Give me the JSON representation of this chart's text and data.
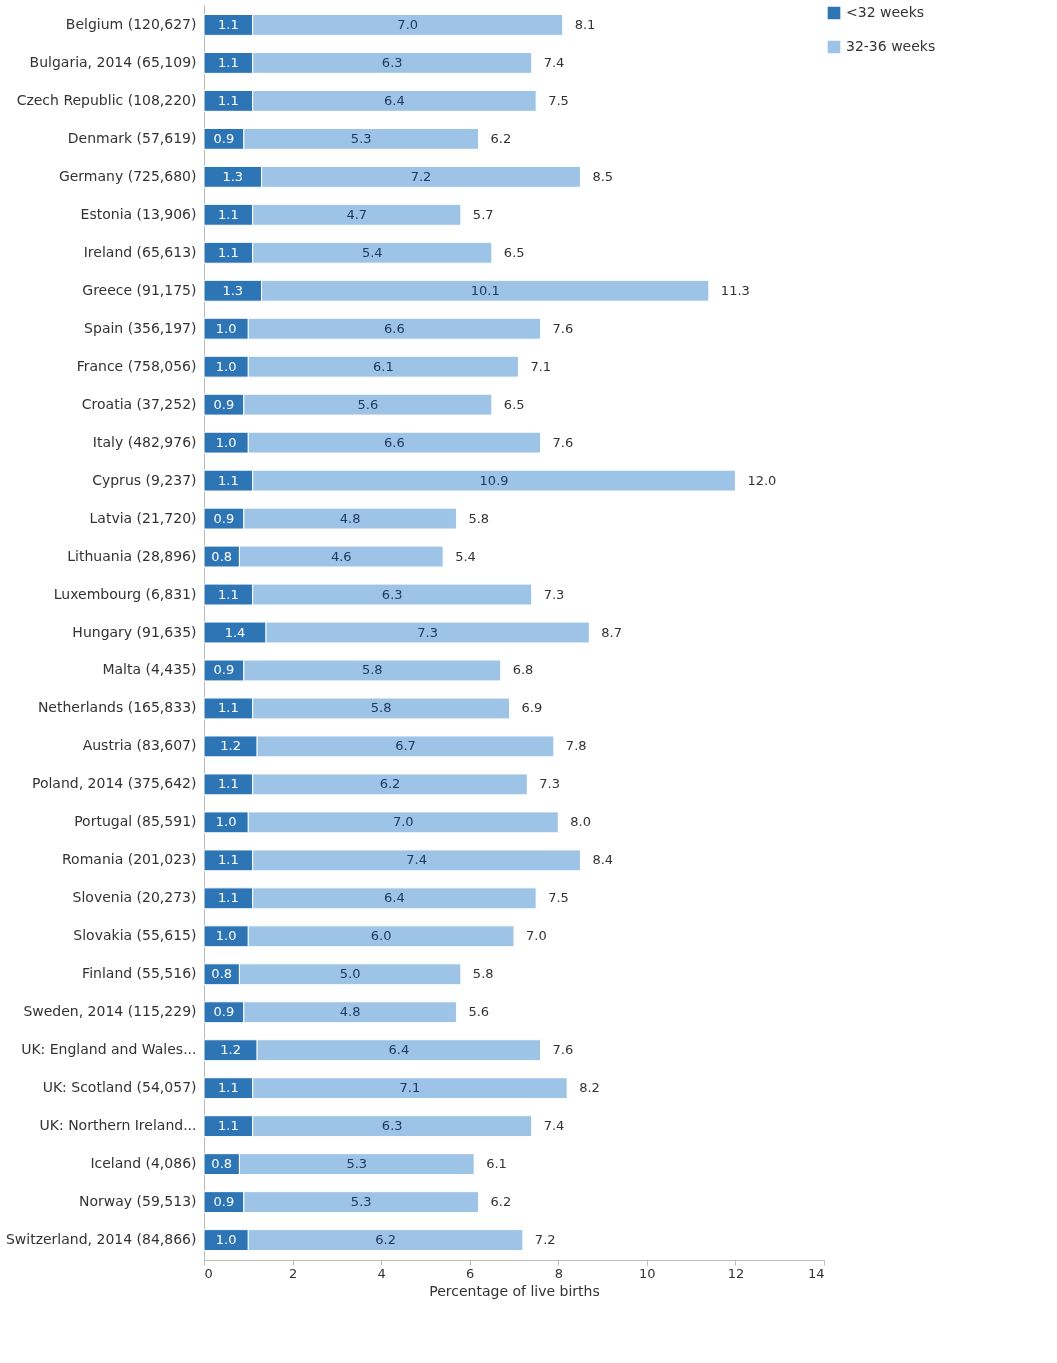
{
  "chart_data": {
    "type": "bar",
    "orientation": "horizontal",
    "stacked": true,
    "grid": false,
    "legend": "right",
    "xlabel": "Percentage of live births",
    "xlim": [
      0,
      14
    ],
    "xticks": [
      0,
      2,
      4,
      6,
      8,
      10,
      12,
      14
    ],
    "categories": [
      "Belgium (120,627)",
      "Bulgaria, 2014 (65,109)",
      "Czech Republic (108,220)",
      "Denmark (57,619)",
      "Germany (725,680)",
      "Estonia (13,906)",
      "Ireland (65,613)",
      "Greece (91,175)",
      "Spain (356,197)",
      "France  (758,056)",
      "Croatia (37,252)",
      "Italy (482,976)",
      "Cyprus (9,237)",
      "Latvia (21,720)",
      "Lithuania (28,896)",
      "Luxembourg (6,831)",
      "Hungary (91,635)",
      "Malta (4,435)",
      "Netherlands (165,833)",
      "Austria (83,607)",
      "Poland, 2014 (375,642)",
      "Portugal (85,591)",
      "Romania (201,023)",
      "Slovenia (20,273)",
      "Slovakia (55,615)",
      "Finland (55,516)",
      "Sweden, 2014 (115,229)",
      "UK: England and Wales...",
      "UK: Scotland (54,057)",
      "UK: Northern Ireland...",
      "Iceland (4,086)",
      "Norway (59,513)",
      "Switzerland, 2014 (84,866)"
    ],
    "series": [
      {
        "name": "<32 weeks",
        "color": "#2e75b6",
        "values": [
          1.1,
          1.1,
          1.1,
          0.9,
          1.3,
          1.1,
          1.1,
          1.3,
          1.0,
          1.0,
          0.9,
          1.0,
          1.1,
          0.9,
          0.8,
          1.1,
          1.4,
          0.9,
          1.1,
          1.2,
          1.1,
          1.0,
          1.1,
          1.1,
          1.0,
          0.8,
          0.9,
          1.2,
          1.1,
          1.1,
          0.8,
          0.9,
          1.0
        ],
        "value_labels": [
          "1.1",
          "1.1",
          "1.1",
          "0.9",
          "1.3",
          "1.1",
          "1.1",
          "1.3",
          "1.0",
          "1.0",
          "0.9",
          "1.0",
          "1.1",
          "0.9",
          "0.8",
          "1.1",
          "1.4",
          "0.9",
          "1.1",
          "1.2",
          "1.1",
          "1.0",
          "1.1",
          "1.1",
          "1.0",
          "0.8",
          "0.9",
          "1.2",
          "1.1",
          "1.1",
          "0.8",
          "0.9",
          "1.0"
        ]
      },
      {
        "name": "32-36 weeks",
        "color": "#9dc3e6",
        "values": [
          7.0,
          6.3,
          6.4,
          5.3,
          7.2,
          4.7,
          5.4,
          10.1,
          6.6,
          6.1,
          5.6,
          6.6,
          10.9,
          4.8,
          4.6,
          6.3,
          7.3,
          5.8,
          5.8,
          6.7,
          6.2,
          7.0,
          7.4,
          6.4,
          6.0,
          5.0,
          4.8,
          6.4,
          7.1,
          6.3,
          5.3,
          5.3,
          6.2
        ],
        "value_labels": [
          "7.0",
          "6.3",
          "6.4",
          "5.3",
          "7.2",
          "4.7",
          "5.4",
          "10.1",
          "6.6",
          "6.1",
          "5.6",
          "6.6",
          "10.9",
          "4.8",
          "4.6",
          "6.3",
          "7.3",
          "5.8",
          "5.8",
          "6.7",
          "6.2",
          "7.0",
          "7.4",
          "6.4",
          "6.0",
          "5.0",
          "4.8",
          "6.4",
          "7.1",
          "6.3",
          "5.3",
          "5.3",
          "6.2"
        ]
      }
    ],
    "totals": [
      "8.1",
      "7.4",
      "7.5",
      "6.2",
      "8.5",
      "5.7",
      "6.5",
      "11.3",
      "7.6",
      "7.1",
      "6.5",
      "7.6",
      "12.0",
      "5.8",
      "5.4",
      "7.3",
      "8.7",
      "6.8",
      "6.9",
      "7.8",
      "7.3",
      "8.0",
      "8.4",
      "7.5",
      "7.0",
      "5.8",
      "5.6",
      "7.6",
      "8.2",
      "7.4",
      "6.1",
      "6.2",
      "7.2"
    ]
  }
}
